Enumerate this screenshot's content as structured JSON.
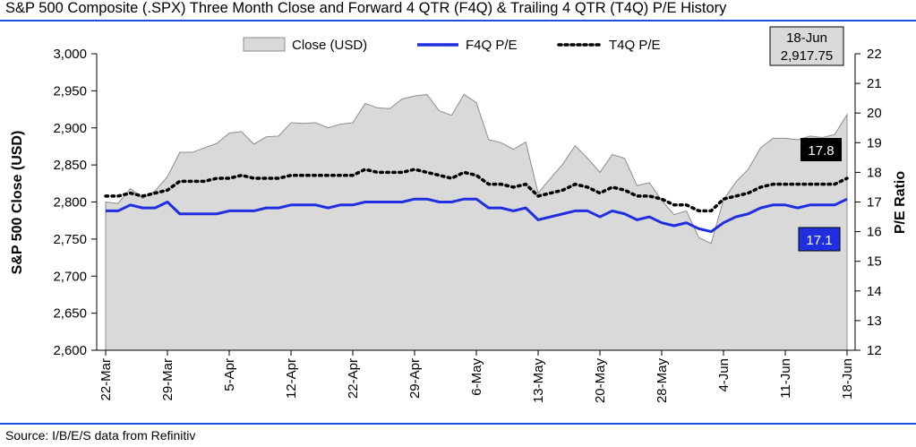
{
  "header": {
    "title": "S&P 500 Composite (.SPX) Three Month Close and Forward 4 QTR (F4Q) & Trailing 4 QTR (T4Q) P/E History"
  },
  "footer": {
    "source": "Source: I/B/E/S data from Refinitiv"
  },
  "colors": {
    "rule": "#1f4fd8",
    "close_fill": "#d9d9d9",
    "close_stroke": "#8c8c8c",
    "f4q_line": "#1f2fe0",
    "t4q_line": "#000000",
    "callout_t4q_bg": "#000000",
    "callout_f4q_bg": "#1f2fe0",
    "callout_latest_bg": "#d9d9d9"
  },
  "chart_data": {
    "type": "area",
    "title": "S&P 500 Composite (.SPX) Three Month Close and Forward 4 QTR (F4Q) & Trailing 4 QTR (T4Q) P/E History",
    "ylabel_left": "S&P 500 Close (USD)",
    "ylabel_right": "P/E Ratio",
    "ylim_left": [
      2600,
      3000
    ],
    "ylim_right": [
      12,
      22
    ],
    "yticks_left": [
      "2,600",
      "2,650",
      "2,700",
      "2,750",
      "2,800",
      "2,850",
      "2,900",
      "2,950",
      "3,000"
    ],
    "yticks_right": [
      "12",
      "13",
      "14",
      "15",
      "16",
      "17",
      "18",
      "19",
      "20",
      "21",
      "22"
    ],
    "xtick_labels": [
      "22-Mar",
      "29-Mar",
      "5-Apr",
      "12-Apr",
      "22-Apr",
      "29-Apr",
      "6-May",
      "13-May",
      "20-May",
      "28-May",
      "4-Jun",
      "11-Jun",
      "18-Jun"
    ],
    "xtick_index": [
      0,
      5,
      10,
      15,
      20,
      25,
      30,
      35,
      40,
      45,
      50,
      55,
      60
    ],
    "grid": false,
    "legend_position": "top",
    "legend": [
      "Close (USD)",
      "F4Q P/E",
      "T4Q P/E"
    ],
    "series": [
      {
        "name": "Close (USD)",
        "axis": "left",
        "style": "area",
        "values": [
          2800,
          2798,
          2818,
          2805,
          2815,
          2834,
          2867,
          2867,
          2873,
          2879,
          2893,
          2895,
          2878,
          2888,
          2889,
          2907,
          2906,
          2907,
          2900,
          2905,
          2907,
          2933,
          2927,
          2926,
          2939,
          2943,
          2945,
          2923,
          2917,
          2945,
          2934,
          2884,
          2880,
          2871,
          2881,
          2812,
          2832,
          2851,
          2876,
          2859,
          2840,
          2864,
          2859,
          2822,
          2826,
          2802,
          2783,
          2788,
          2752,
          2744,
          2803,
          2827,
          2844,
          2873,
          2886,
          2886,
          2884,
          2889,
          2887,
          2891,
          2918
        ]
      },
      {
        "name": "F4Q P/E",
        "axis": "right",
        "style": "solid",
        "values": [
          16.7,
          16.7,
          16.9,
          16.8,
          16.8,
          17.0,
          16.6,
          16.6,
          16.6,
          16.6,
          16.7,
          16.7,
          16.7,
          16.8,
          16.8,
          16.9,
          16.9,
          16.9,
          16.8,
          16.9,
          16.9,
          17.0,
          17.0,
          17.0,
          17.0,
          17.1,
          17.1,
          17.0,
          17.0,
          17.1,
          17.1,
          16.8,
          16.8,
          16.7,
          16.8,
          16.4,
          16.5,
          16.6,
          16.7,
          16.7,
          16.5,
          16.7,
          16.6,
          16.4,
          16.5,
          16.3,
          16.2,
          16.3,
          16.1,
          16.0,
          16.3,
          16.5,
          16.6,
          16.8,
          16.9,
          16.9,
          16.8,
          16.9,
          16.9,
          16.9,
          17.1
        ]
      },
      {
        "name": "T4Q P/E",
        "axis": "right",
        "style": "dotted",
        "values": [
          17.2,
          17.2,
          17.3,
          17.2,
          17.3,
          17.4,
          17.7,
          17.7,
          17.7,
          17.8,
          17.8,
          17.9,
          17.8,
          17.8,
          17.8,
          17.9,
          17.9,
          17.9,
          17.9,
          17.9,
          17.9,
          18.1,
          18.0,
          18.0,
          18.0,
          18.1,
          18.0,
          17.9,
          17.8,
          18.0,
          17.9,
          17.6,
          17.6,
          17.5,
          17.6,
          17.2,
          17.3,
          17.4,
          17.6,
          17.5,
          17.3,
          17.5,
          17.4,
          17.2,
          17.2,
          17.1,
          16.9,
          16.9,
          16.7,
          16.7,
          17.1,
          17.2,
          17.3,
          17.5,
          17.6,
          17.6,
          17.6,
          17.6,
          17.6,
          17.6,
          17.8
        ]
      }
    ],
    "annotations": {
      "latest_date": "18-Jun",
      "latest_close": "2,917.75",
      "t4q_last": "17.8",
      "f4q_last": "17.1"
    }
  }
}
